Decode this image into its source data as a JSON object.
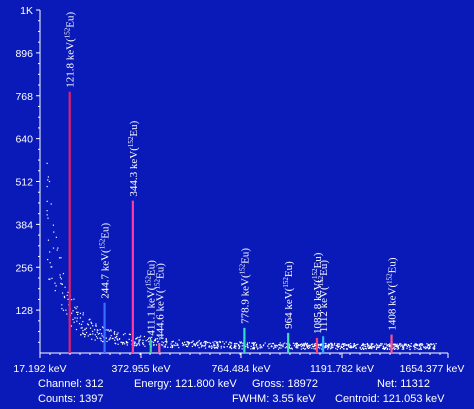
{
  "chart_data": {
    "type": "scatter",
    "title": "",
    "xlabel": "",
    "ylabel": "",
    "y_max_label": "1K",
    "y_ticks": [
      128,
      256,
      384,
      512,
      640,
      768,
      896
    ],
    "ylim": [
      0,
      1024
    ],
    "x_ticks_labels": [
      "17.192 keV",
      "372.955 keV",
      "764.484 keV",
      "1191.782 keV",
      "1654.377 keV"
    ],
    "x_ticks_values": [
      17.192,
      372.955,
      764.484,
      1191.782,
      1654.377
    ],
    "xlim": [
      17.192,
      1654.377
    ],
    "background": "#0a1ab8",
    "axis_color": "#ffffff",
    "peaks": [
      {
        "energy": 121.8,
        "counts": 780,
        "color": "#e0206a",
        "label": "121.8 keV(152Eu)"
      },
      {
        "energy": 244.7,
        "counts": 150,
        "color": "#3a6cff",
        "label": "244.7 keV(152Eu)"
      },
      {
        "energy": 344.3,
        "counts": 455,
        "color": "#ff3aa0",
        "label": "344.3 keV(152Eu)"
      },
      {
        "energy": 411.1,
        "counts": 40,
        "color": "#40d0a0",
        "label": "411.1 keV(152Eu)"
      },
      {
        "energy": 444.6,
        "counts": 30,
        "color": "#ff60a0",
        "label": "444.6 keV(152Eu)"
      },
      {
        "energy": 778.9,
        "counts": 75,
        "color": "#30e0c0",
        "label": "778.9 keV(152Eu)"
      },
      {
        "energy": 964,
        "counts": 60,
        "color": "#40e0b0",
        "label": "964 keV(152Eu)"
      },
      {
        "energy": 1085.8,
        "counts": 45,
        "color": "#ff4070",
        "label": "1085.8 keV(152Eu)"
      },
      {
        "energy": 1112,
        "counts": 50,
        "color": "#30b0ff",
        "label": "1112 keV(152Eu)"
      },
      {
        "energy": 1408,
        "counts": 55,
        "color": "#ff5090",
        "label": "1408 keV(152Eu)"
      }
    ]
  },
  "status": {
    "channel": "Channel: 312",
    "counts": "Counts: 1397",
    "energy": "Energy: 121.800 keV",
    "gross": "Gross: 18972",
    "fwhm": "FWHM: 3.55 keV",
    "net": "Net: 11312",
    "centroid": "Centroid: 121.053 keV"
  }
}
